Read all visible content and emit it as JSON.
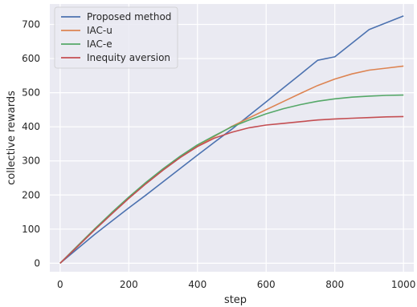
{
  "chart_data": {
    "type": "line",
    "title": "",
    "xlabel": "step",
    "ylabel": "collective rewards",
    "xlim": [
      -30,
      1030
    ],
    "ylim": [
      -25,
      760
    ],
    "x_ticks": [
      0,
      200,
      400,
      600,
      800,
      1000
    ],
    "y_ticks": [
      0,
      100,
      200,
      300,
      400,
      500,
      600,
      700
    ],
    "grid": true,
    "legend_position": "top-left",
    "background_color": "#eaeaf2",
    "x": [
      0,
      50,
      100,
      150,
      200,
      250,
      300,
      350,
      400,
      450,
      500,
      550,
      600,
      650,
      700,
      750,
      800,
      850,
      900,
      950,
      1000
    ],
    "series": [
      {
        "name": "Proposed method",
        "color": "#4c72b0",
        "values": [
          0,
          42,
          84,
          123,
          162,
          200,
          239,
          278,
          317,
          355,
          393,
          433,
          473,
          514,
          554,
          595,
          605,
          645,
          685,
          705,
          725
        ]
      },
      {
        "name": "IAC-u",
        "color": "#dd8452",
        "values": [
          0,
          50,
          100,
          146,
          192,
          234,
          274,
          311,
          344,
          372,
          401,
          426,
          450,
          474,
          498,
          521,
          540,
          555,
          566,
          572,
          578
        ]
      },
      {
        "name": "IAC-e",
        "color": "#55a868",
        "values": [
          0,
          50,
          100,
          148,
          194,
          237,
          277,
          314,
          347,
          374,
          400,
          420,
          438,
          453,
          465,
          475,
          482,
          487,
          490,
          492,
          493
        ]
      },
      {
        "name": "Inequity aversion",
        "color": "#c44e52",
        "values": [
          0,
          48,
          97,
          144,
          190,
          233,
          273,
          310,
          342,
          367,
          384,
          397,
          405,
          410,
          415,
          420,
          423,
          425,
          427,
          429,
          430
        ]
      }
    ]
  }
}
